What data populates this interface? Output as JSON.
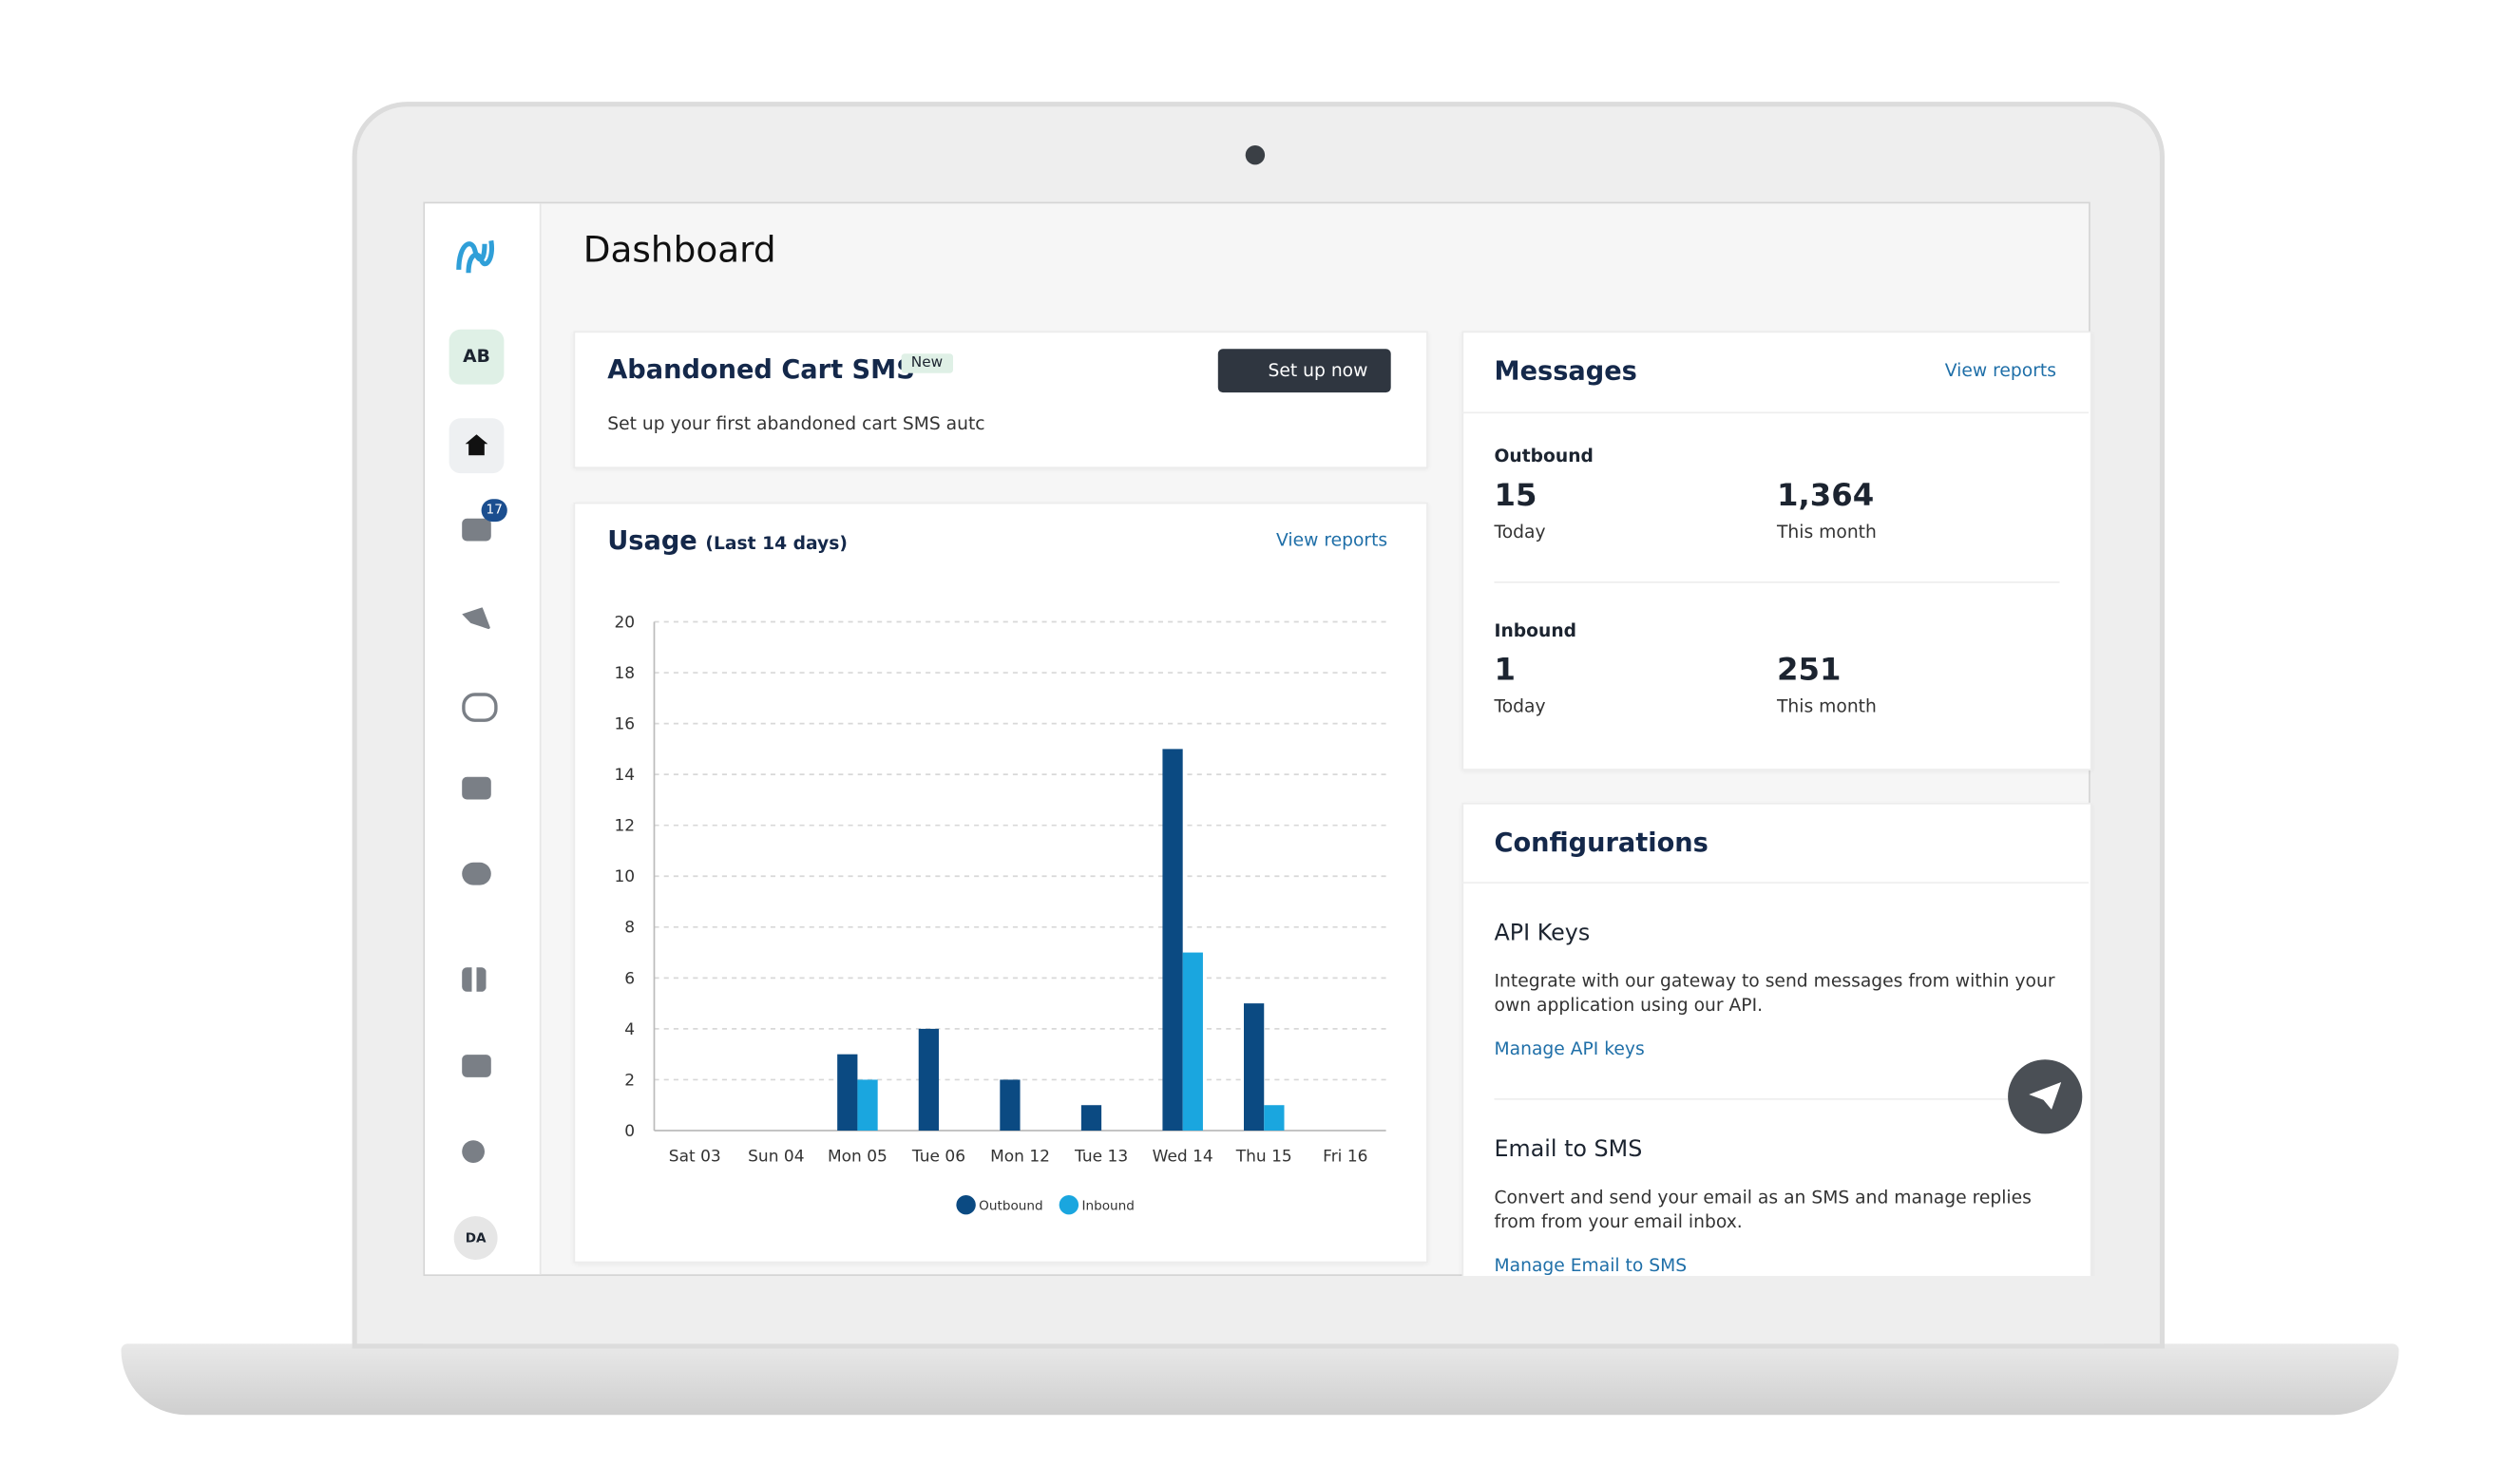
{
  "sidebar": {
    "workspace_badge": "AB",
    "notification_count": "17",
    "user_badge": "DA"
  },
  "header": {
    "title": "Dashboard"
  },
  "abandoned_cart": {
    "title": "Abandoned Cart SMS",
    "tag": "New",
    "button": "Set up now",
    "description": "Set up your first abandoned cart SMS autc"
  },
  "usage": {
    "title": "Usage",
    "subtitle": "(Last 14 days)",
    "link": "View reports",
    "chart_data": {
      "type": "bar",
      "categories": [
        "Sat 03",
        "Sun 04",
        "Mon 05",
        "Tue 06",
        "Mon 12",
        "Tue 13",
        "Wed 14",
        "Thu 15",
        "Fri 16"
      ],
      "series": [
        {
          "name": "Outbound",
          "color": "#0b4a82",
          "values": [
            0,
            0,
            3,
            4,
            2,
            1,
            15,
            5,
            0
          ]
        },
        {
          "name": "Inbound",
          "color": "#1aa6df",
          "values": [
            0,
            0,
            2,
            0,
            0,
            0,
            7,
            1,
            0
          ]
        }
      ],
      "ylim": [
        0,
        20
      ],
      "yticks": [
        0,
        2,
        4,
        6,
        8,
        10,
        12,
        14,
        16,
        18,
        20
      ],
      "grid": true
    }
  },
  "messages": {
    "title": "Messages",
    "link": "View reports",
    "groups": [
      {
        "label": "Outbound",
        "today": "15",
        "today_label": "Today",
        "month": "1,364",
        "month_label": "This month"
      },
      {
        "label": "Inbound",
        "today": "1",
        "today_label": "Today",
        "month": "251",
        "month_label": "This month"
      }
    ]
  },
  "configurations": {
    "title": "Configurations",
    "items": [
      {
        "title": "API Keys",
        "description": "Integrate with our gateway to send messages from within your own application using our API.",
        "link": "Manage API keys"
      },
      {
        "title": "Email to SMS",
        "description": "Convert and send your email as an SMS and manage replies from from your email inbox.",
        "link": "Manage Email to SMS"
      }
    ]
  }
}
